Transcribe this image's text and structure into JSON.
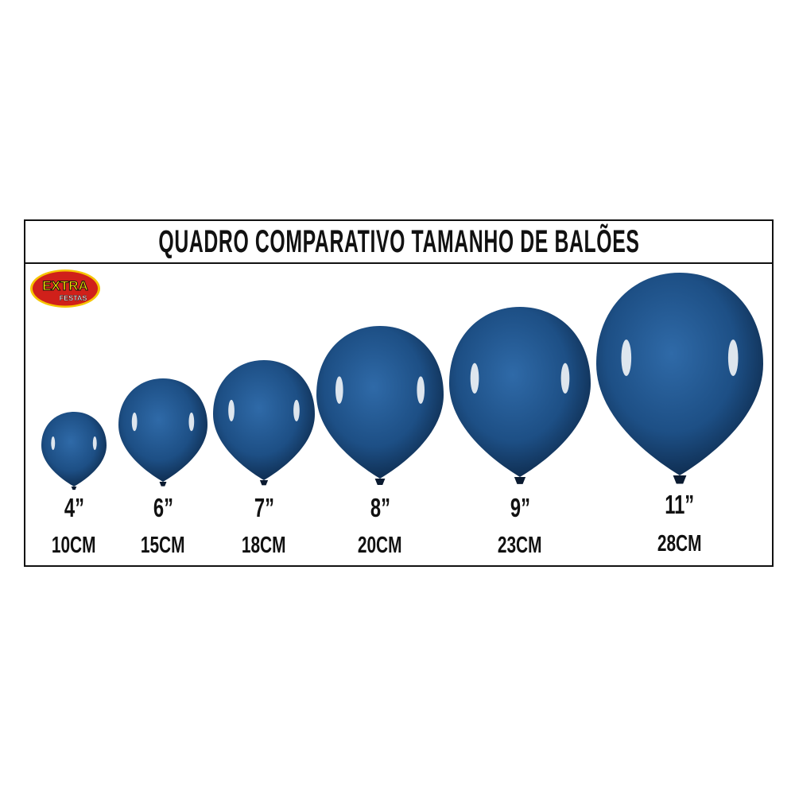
{
  "title": "QUADRO COMPARATIVO TAMANHO DE BALÕES",
  "logo": {
    "text": "EXTRA",
    "subtext": "FESTAS",
    "colors": {
      "oval": "#d0201a",
      "border": "#f5c400",
      "text": "#ffe000"
    }
  },
  "balloon_color": "#1d4f85",
  "balloons": [
    {
      "inches": "4”",
      "cm": "10CM"
    },
    {
      "inches": "6”",
      "cm": "15CM"
    },
    {
      "inches": "7”",
      "cm": "18CM"
    },
    {
      "inches": "8”",
      "cm": "20CM"
    },
    {
      "inches": "9”",
      "cm": "23CM"
    },
    {
      "inches": "11”",
      "cm": "28CM"
    }
  ]
}
